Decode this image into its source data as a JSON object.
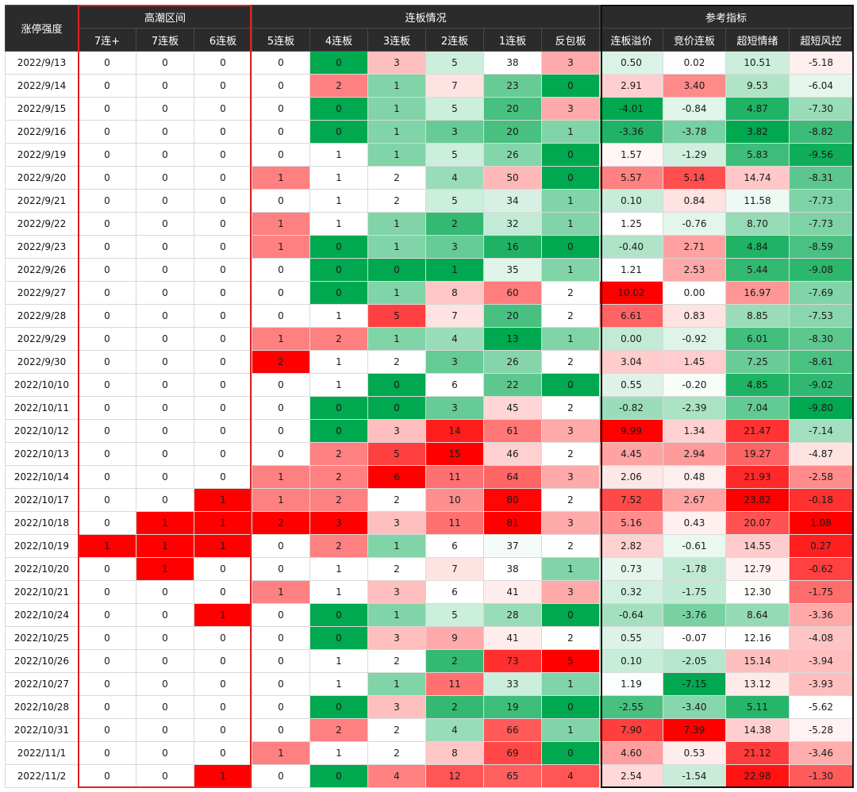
{
  "header": {
    "corner": "涨停强度",
    "groups": [
      "高潮区间",
      "连板情况",
      "参考指标"
    ],
    "columns": [
      "7连+",
      "7连板",
      "6连板",
      "5连板",
      "4连板",
      "3连板",
      "2连板",
      "1连板",
      "反包板",
      "连板溢价",
      "竞价连板",
      "超短情绪",
      "超短风控"
    ]
  },
  "rows": [
    {
      "date": "2022/9/13",
      "values": [
        "0",
        "0",
        "0",
        "0",
        "0",
        "3",
        "5",
        "38",
        "3",
        "0.50",
        "0.02",
        "10.51",
        "-5.18"
      ]
    },
    {
      "date": "2022/9/14",
      "values": [
        "0",
        "0",
        "0",
        "0",
        "2",
        "1",
        "7",
        "23",
        "0",
        "2.91",
        "3.40",
        "9.53",
        "-6.04"
      ]
    },
    {
      "date": "2022/9/15",
      "values": [
        "0",
        "0",
        "0",
        "0",
        "0",
        "1",
        "5",
        "20",
        "3",
        "-4.01",
        "-0.84",
        "4.87",
        "-7.30"
      ]
    },
    {
      "date": "2022/9/16",
      "values": [
        "0",
        "0",
        "0",
        "0",
        "0",
        "1",
        "3",
        "20",
        "1",
        "-3.36",
        "-3.78",
        "3.82",
        "-8.82"
      ]
    },
    {
      "date": "2022/9/19",
      "values": [
        "0",
        "0",
        "0",
        "0",
        "1",
        "1",
        "5",
        "26",
        "0",
        "1.57",
        "-1.29",
        "5.83",
        "-9.56"
      ]
    },
    {
      "date": "2022/9/20",
      "values": [
        "0",
        "0",
        "0",
        "1",
        "1",
        "2",
        "4",
        "50",
        "0",
        "5.57",
        "5.14",
        "14.74",
        "-8.31"
      ]
    },
    {
      "date": "2022/9/21",
      "values": [
        "0",
        "0",
        "0",
        "0",
        "1",
        "2",
        "5",
        "34",
        "1",
        "0.10",
        "0.84",
        "11.58",
        "-7.73"
      ]
    },
    {
      "date": "2022/9/22",
      "values": [
        "0",
        "0",
        "0",
        "1",
        "1",
        "1",
        "2",
        "32",
        "1",
        "1.25",
        "-0.76",
        "8.70",
        "-7.73"
      ]
    },
    {
      "date": "2022/9/23",
      "values": [
        "0",
        "0",
        "0",
        "1",
        "0",
        "1",
        "3",
        "16",
        "0",
        "-0.40",
        "2.71",
        "4.84",
        "-8.59"
      ]
    },
    {
      "date": "2022/9/26",
      "values": [
        "0",
        "0",
        "0",
        "0",
        "0",
        "0",
        "1",
        "35",
        "1",
        "1.21",
        "2.53",
        "5.44",
        "-9.08"
      ]
    },
    {
      "date": "2022/9/27",
      "values": [
        "0",
        "0",
        "0",
        "0",
        "0",
        "1",
        "8",
        "60",
        "2",
        "10.02",
        "0.00",
        "16.97",
        "-7.69"
      ]
    },
    {
      "date": "2022/9/28",
      "values": [
        "0",
        "0",
        "0",
        "0",
        "1",
        "5",
        "7",
        "20",
        "2",
        "6.61",
        "0.83",
        "8.85",
        "-7.53"
      ]
    },
    {
      "date": "2022/9/29",
      "values": [
        "0",
        "0",
        "0",
        "1",
        "2",
        "1",
        "4",
        "13",
        "1",
        "0.00",
        "-0.92",
        "6.01",
        "-8.30"
      ]
    },
    {
      "date": "2022/9/30",
      "values": [
        "0",
        "0",
        "0",
        "2",
        "1",
        "2",
        "3",
        "26",
        "2",
        "3.04",
        "1.45",
        "7.25",
        "-8.61"
      ]
    },
    {
      "date": "2022/10/10",
      "values": [
        "0",
        "0",
        "0",
        "0",
        "1",
        "0",
        "6",
        "22",
        "0",
        "0.55",
        "-0.20",
        "4.85",
        "-9.02"
      ]
    },
    {
      "date": "2022/10/11",
      "values": [
        "0",
        "0",
        "0",
        "0",
        "0",
        "0",
        "3",
        "45",
        "2",
        "-0.82",
        "-2.39",
        "7.04",
        "-9.80"
      ]
    },
    {
      "date": "2022/10/12",
      "values": [
        "0",
        "0",
        "0",
        "0",
        "0",
        "3",
        "14",
        "61",
        "3",
        "9.99",
        "1.34",
        "21.47",
        "-7.14"
      ]
    },
    {
      "date": "2022/10/13",
      "values": [
        "0",
        "0",
        "0",
        "0",
        "2",
        "5",
        "15",
        "46",
        "2",
        "4.45",
        "2.94",
        "19.27",
        "-4.87"
      ]
    },
    {
      "date": "2022/10/14",
      "values": [
        "0",
        "0",
        "0",
        "1",
        "2",
        "6",
        "11",
        "64",
        "3",
        "2.06",
        "0.48",
        "21.93",
        "-2.58"
      ]
    },
    {
      "date": "2022/10/17",
      "values": [
        "0",
        "0",
        "1",
        "1",
        "2",
        "2",
        "10",
        "80",
        "2",
        "7.52",
        "2.67",
        "23.82",
        "-0.18"
      ]
    },
    {
      "date": "2022/10/18",
      "values": [
        "0",
        "1",
        "1",
        "2",
        "3",
        "3",
        "11",
        "81",
        "3",
        "5.16",
        "0.43",
        "20.07",
        "1.08"
      ]
    },
    {
      "date": "2022/10/19",
      "values": [
        "1",
        "1",
        "1",
        "0",
        "2",
        "1",
        "6",
        "37",
        "2",
        "2.82",
        "-0.61",
        "14.55",
        "0.27"
      ]
    },
    {
      "date": "2022/10/20",
      "values": [
        "0",
        "1",
        "0",
        "0",
        "1",
        "2",
        "7",
        "38",
        "1",
        "0.73",
        "-1.78",
        "12.79",
        "-0.62"
      ]
    },
    {
      "date": "2022/10/21",
      "values": [
        "0",
        "0",
        "0",
        "1",
        "1",
        "3",
        "6",
        "41",
        "3",
        "0.32",
        "-1.75",
        "12.30",
        "-1.75"
      ]
    },
    {
      "date": "2022/10/24",
      "values": [
        "0",
        "0",
        "1",
        "0",
        "0",
        "1",
        "5",
        "28",
        "0",
        "-0.64",
        "-3.76",
        "8.64",
        "-3.36"
      ]
    },
    {
      "date": "2022/10/25",
      "values": [
        "0",
        "0",
        "0",
        "0",
        "0",
        "3",
        "9",
        "41",
        "2",
        "0.55",
        "-0.07",
        "12.16",
        "-4.08"
      ]
    },
    {
      "date": "2022/10/26",
      "values": [
        "0",
        "0",
        "0",
        "0",
        "1",
        "2",
        "2",
        "73",
        "5",
        "0.10",
        "-2.05",
        "15.14",
        "-3.94"
      ]
    },
    {
      "date": "2022/10/27",
      "values": [
        "0",
        "0",
        "0",
        "0",
        "1",
        "1",
        "11",
        "33",
        "1",
        "1.19",
        "-7.15",
        "13.12",
        "-3.93"
      ]
    },
    {
      "date": "2022/10/28",
      "values": [
        "0",
        "0",
        "0",
        "0",
        "0",
        "3",
        "2",
        "19",
        "0",
        "-2.55",
        "-3.40",
        "5.11",
        "-5.62"
      ]
    },
    {
      "date": "2022/10/31",
      "values": [
        "0",
        "0",
        "0",
        "0",
        "2",
        "2",
        "4",
        "66",
        "1",
        "7.90",
        "7.39",
        "14.38",
        "-5.28"
      ]
    },
    {
      "date": "2022/11/1",
      "values": [
        "0",
        "0",
        "0",
        "1",
        "1",
        "2",
        "8",
        "69",
        "0",
        "4.60",
        "0.53",
        "21.12",
        "-3.46"
      ]
    },
    {
      "date": "2022/11/2",
      "values": [
        "0",
        "0",
        "1",
        "0",
        "0",
        "4",
        "12",
        "65",
        "4",
        "2.54",
        "-1.54",
        "22.98",
        "-1.30"
      ]
    }
  ],
  "colors": {
    "high_red": "#ff0000",
    "mid_white": "#ffffff",
    "low_green": "#00a84f",
    "header_bg": "#2b2b2b",
    "header_text": "#ffffff",
    "climax_border": "#e02020",
    "indicator_border": "#111111"
  }
}
